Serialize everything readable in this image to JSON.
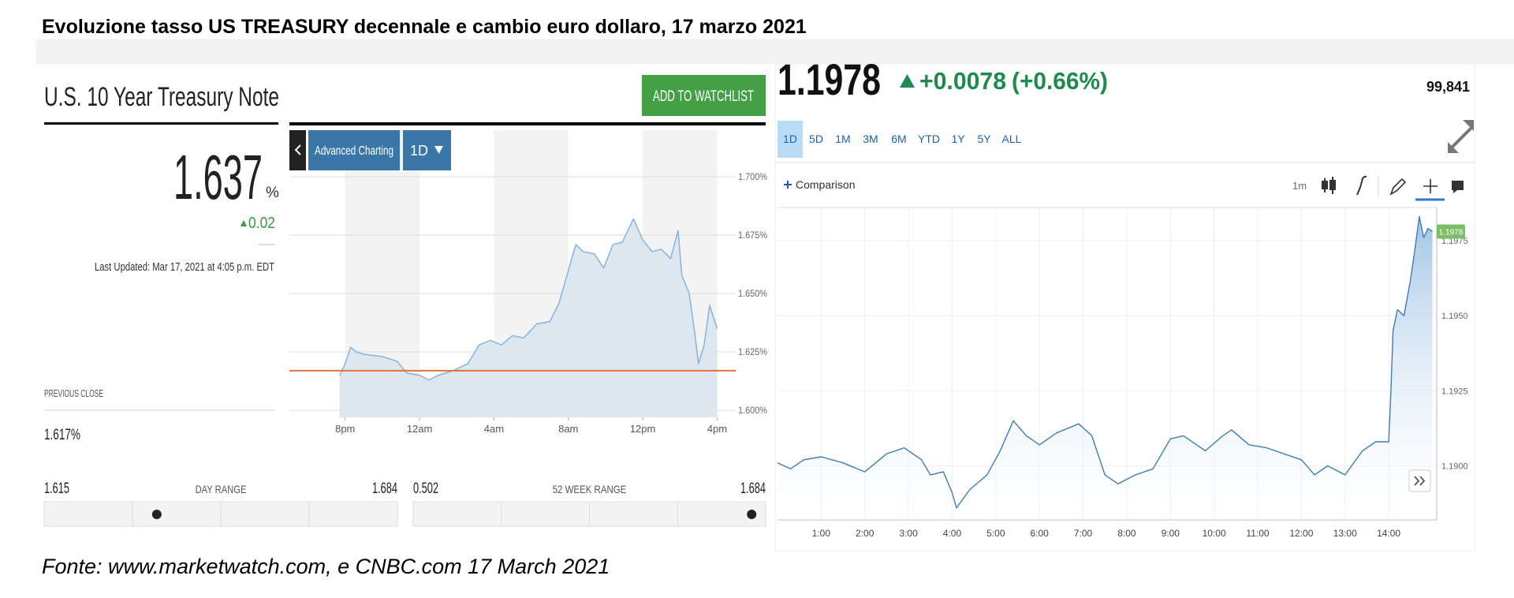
{
  "title": "Evoluzione tasso US TREASURY decennale e cambio euro dollaro, 17 marzo 2021",
  "source": "Fonte: www.marketwatch.com,  e CNBC.com  17 March 2021",
  "treasury": {
    "name": "U.S. 10 Year Treasury Note",
    "watchlist_button": "ADD TO WATCHLIST",
    "price": 1.637,
    "price_unit": "%",
    "change": 0.02,
    "updated": "Last Updated: Mar 17, 2021 at 4:05 p.m. EDT",
    "advanced_button": "Advanced Charting",
    "period_button": "1D",
    "previous_close_title": "PREVIOUS CLOSE",
    "previous_close": {
      "value": 1.617,
      "label": "1.617%"
    },
    "day_range": {
      "title": "DAY RANGE",
      "low": 1.615,
      "high": 1.684
    },
    "week52_range": {
      "title": "52 WEEK RANGE",
      "low": 0.502,
      "high": 1.684
    },
    "chart": {
      "type": "area",
      "color": "#8cb6dc",
      "reference_color": "#e0743a",
      "x": [
        -0.3,
        0,
        0.3,
        0.6,
        1,
        2,
        2.8,
        3.3,
        4,
        4.5,
        5,
        5.8,
        6.6,
        7.2,
        7.8,
        8.4,
        9,
        9.6,
        10.3,
        11,
        11.5,
        12,
        12.4,
        12.8,
        13.4,
        13.9,
        14.4,
        14.9,
        15.5,
        16,
        16.5,
        17,
        17.5,
        17.9,
        18.1,
        18.5,
        18.8,
        19,
        19.3,
        19.6,
        19.8,
        20
      ],
      "values": [
        1.615,
        1.62,
        1.627,
        1.625,
        1.624,
        1.623,
        1.621,
        1.616,
        1.615,
        1.613,
        1.615,
        1.617,
        1.62,
        1.628,
        1.63,
        1.628,
        1.632,
        1.631,
        1.637,
        1.638,
        1.646,
        1.66,
        1.671,
        1.668,
        1.667,
        1.661,
        1.671,
        1.672,
        1.682,
        1.673,
        1.668,
        1.669,
        1.665,
        1.677,
        1.658,
        1.65,
        1.633,
        1.62,
        1.628,
        1.645,
        1.64,
        1.635
      ],
      "xlim": [
        -3,
        21
      ],
      "ylim": [
        1.597,
        1.72
      ],
      "xticks": [
        {
          "value": 0,
          "label": "8pm"
        },
        {
          "value": 4,
          "label": "12am"
        },
        {
          "value": 8,
          "label": "4am"
        },
        {
          "value": 12,
          "label": "8am"
        },
        {
          "value": 16,
          "label": "12pm"
        },
        {
          "value": 20,
          "label": "4pm"
        }
      ],
      "yticks": [
        {
          "value": 1.6,
          "label": "1.600%"
        },
        {
          "value": 1.625,
          "label": "1.625%"
        },
        {
          "value": 1.65,
          "label": "1.650%"
        },
        {
          "value": 1.675,
          "label": "1.675%"
        },
        {
          "value": 1.7,
          "label": "1.700%"
        }
      ],
      "grid": true
    }
  },
  "eurusd": {
    "price": 1.1978,
    "change": {
      "value": 0.0078,
      "label": "+0.0078"
    },
    "change_pct": {
      "value": 0.66,
      "label": "(+0.66%)"
    },
    "volume": {
      "value": 99841,
      "label": "99,841"
    },
    "ranges": [
      "1D",
      "5D",
      "1M",
      "3M",
      "6M",
      "YTD",
      "1Y",
      "5Y",
      "ALL"
    ],
    "comparison": "Comparison",
    "interval": "1m",
    "chart": {
      "type": "area",
      "color": "#3b7db4",
      "x": [
        0,
        0.3,
        0.6,
        1,
        1.5,
        2,
        2.5,
        2.9,
        3.3,
        3.5,
        3.8,
        4,
        4.1,
        4.4,
        4.8,
        5.1,
        5.4,
        5.7,
        6,
        6.4,
        6.9,
        7.2,
        7.5,
        7.8,
        8.2,
        8.6,
        9,
        9.3,
        9.8,
        10.2,
        10.4,
        10.8,
        11.2,
        11.6,
        12,
        12.3,
        12.6,
        13,
        13.4,
        13.7,
        14,
        14.05,
        14.1,
        14.2,
        14.35,
        14.5,
        14.6,
        14.7,
        14.8,
        14.9,
        15
      ],
      "values": [
        1.1901,
        1.1899,
        1.1902,
        1.1903,
        1.1901,
        1.1898,
        1.1904,
        1.1906,
        1.1902,
        1.1897,
        1.1898,
        1.1891,
        1.1886,
        1.1892,
        1.1897,
        1.1905,
        1.1915,
        1.191,
        1.1907,
        1.1911,
        1.1914,
        1.191,
        1.1897,
        1.1894,
        1.1897,
        1.1899,
        1.1909,
        1.191,
        1.1905,
        1.191,
        1.1912,
        1.1907,
        1.1906,
        1.1904,
        1.1902,
        1.1897,
        1.19,
        1.1897,
        1.1905,
        1.1908,
        1.1908,
        1.1925,
        1.1945,
        1.1952,
        1.195,
        1.1962,
        1.1972,
        1.1983,
        1.1976,
        1.1979,
        1.1978
      ],
      "xlim": [
        0,
        15.1
      ],
      "ylim": [
        1.1882,
        1.1986
      ],
      "xticks": [
        {
          "value": 1,
          "label": "1:00"
        },
        {
          "value": 2,
          "label": "2:00"
        },
        {
          "value": 3,
          "label": "3:00"
        },
        {
          "value": 4,
          "label": "4:00"
        },
        {
          "value": 5,
          "label": "5:00"
        },
        {
          "value": 6,
          "label": "6:00"
        },
        {
          "value": 7,
          "label": "7:00"
        },
        {
          "value": 8,
          "label": "8:00"
        },
        {
          "value": 9,
          "label": "9:00"
        },
        {
          "value": 10,
          "label": "10:00"
        },
        {
          "value": 11,
          "label": "11:00"
        },
        {
          "value": 12,
          "label": "12:00"
        },
        {
          "value": 13,
          "label": "13:00"
        },
        {
          "value": 14,
          "label": "14:00"
        }
      ],
      "yticks": [
        {
          "value": 1.19,
          "label": "1.1900"
        },
        {
          "value": 1.1925,
          "label": "1.1925"
        },
        {
          "value": 1.195,
          "label": "1.1950"
        },
        {
          "value": 1.1975,
          "label": "1.1975"
        }
      ],
      "grid": true
    }
  }
}
